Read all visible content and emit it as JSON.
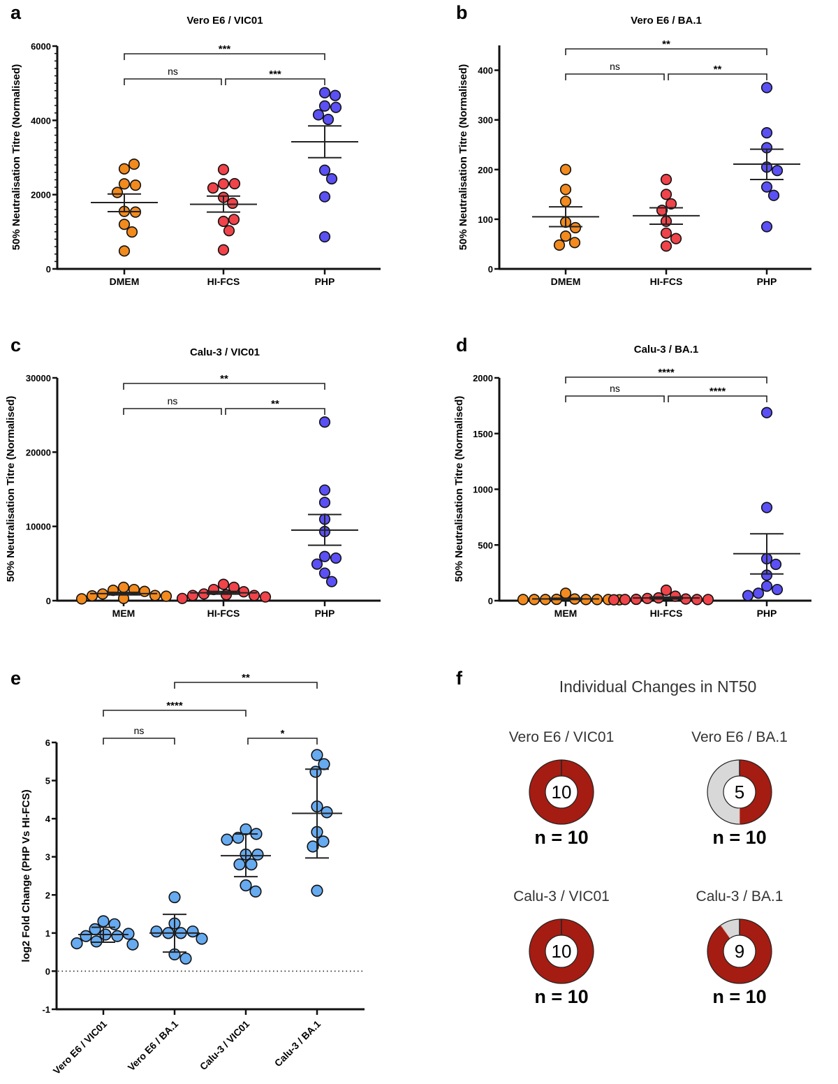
{
  "chart_data": [
    {
      "type": "scatter",
      "panel_label": "a",
      "title": "Vero E6 / VIC01",
      "ylabel": "50% Neutralisation Titre (Normalised)",
      "ylim": [
        0,
        6000
      ],
      "yticks": [
        0,
        2000,
        4000,
        6000
      ],
      "minor_ticks": 10,
      "error_bars": "SEM",
      "categories": [
        "DMEM",
        "HI-FCS",
        "PHP"
      ],
      "colors": [
        "#f28a1e",
        "#f0434a",
        "#5a50f5"
      ],
      "groups": [
        {
          "values": [
            2695,
            2820,
            2290,
            2255,
            2060,
            1550,
            1530,
            1200,
            995,
            483
          ],
          "mean": 1787,
          "err_low": 1542,
          "err_high": 2018
        },
        {
          "values": [
            2676,
            2290,
            2295,
            2180,
            1925,
            1768,
            1280,
            1330,
            1029,
            513
          ],
          "mean": 1740,
          "err_low": 1530,
          "err_high": 1960
        },
        {
          "values": [
            4745,
            4670,
            4387,
            4350,
            4150,
            4025,
            2657,
            2427,
            1943,
            865
          ],
          "mean": 3423,
          "err_low": 2996,
          "err_high": 3850
        }
      ],
      "brackets": [
        {
          "from": 0,
          "to": 1,
          "label": "ns"
        },
        {
          "from": 1,
          "to": 2,
          "label": "***"
        },
        {
          "from": 0,
          "to": 2,
          "label": "***"
        }
      ]
    },
    {
      "type": "scatter",
      "panel_label": "b",
      "title": "Vero E6 / BA.1",
      "ylabel": "50% Neutralisation Titre (Normalised)",
      "ylim": [
        0,
        450
      ],
      "yticks": [
        0,
        100,
        200,
        300,
        400
      ],
      "error_bars": "SEM",
      "categories": [
        "DMEM",
        "HI-FCS",
        "PHP"
      ],
      "colors": [
        "#f28a1e",
        "#f0434a",
        "#5a50f5"
      ],
      "groups": [
        {
          "values": [
            200,
            160,
            136,
            94,
            83,
            66,
            53,
            48
          ],
          "mean": 105,
          "err_low": 85,
          "err_high": 125
        },
        {
          "values": [
            180,
            150,
            131,
            118,
            96,
            72,
            61,
            46
          ],
          "mean": 107,
          "err_low": 90,
          "err_high": 123
        },
        {
          "values": [
            365,
            274,
            244,
            205,
            198,
            165,
            148,
            85
          ],
          "mean": 211,
          "err_low": 180,
          "err_high": 241
        }
      ],
      "brackets": [
        {
          "from": 0,
          "to": 1,
          "label": "ns"
        },
        {
          "from": 1,
          "to": 2,
          "label": "**"
        },
        {
          "from": 0,
          "to": 2,
          "label": "**"
        }
      ]
    },
    {
      "type": "scatter",
      "panel_label": "c",
      "title": "Calu-3 / VIC01",
      "ylabel": "50% Neutralisation Titre (Normalised)",
      "ylim": [
        0,
        30000
      ],
      "yticks": [
        0,
        10000,
        20000,
        30000
      ],
      "error_bars": "SEM",
      "categories": [
        "MEM",
        "HI-FCS",
        "PHP"
      ],
      "colors": [
        "#f28a1e",
        "#f0434a",
        "#5a50f5"
      ],
      "groups": [
        {
          "values": [
            1800,
            1500,
            1400,
            1250,
            900,
            700,
            650,
            600,
            300,
            250
          ],
          "mean": 950,
          "err_low": 780,
          "err_high": 1120
        },
        {
          "values": [
            2200,
            1800,
            1500,
            1200,
            900,
            800,
            700,
            700,
            500,
            300
          ],
          "mean": 1060,
          "err_low": 880,
          "err_high": 1250
        },
        {
          "values": [
            24050,
            14890,
            13230,
            10970,
            9310,
            5950,
            5730,
            4920,
            3700,
            2570
          ],
          "mean": 9500,
          "err_low": 7460,
          "err_high": 11600
        }
      ],
      "brackets": [
        {
          "from": 0,
          "to": 1,
          "label": "ns"
        },
        {
          "from": 1,
          "to": 2,
          "label": "**"
        },
        {
          "from": 0,
          "to": 2,
          "label": "**"
        }
      ]
    },
    {
      "type": "scatter",
      "panel_label": "d",
      "title": "Calu-3 / BA.1",
      "ylabel": "50% Neutralisation Titre (Normalised)",
      "ylim": [
        0,
        2000
      ],
      "yticks": [
        0,
        500,
        1000,
        1500,
        2000
      ],
      "error_bars": "SEM",
      "categories": [
        "MEM",
        "HI-FCS",
        "PHP"
      ],
      "colors": [
        "#f28a1e",
        "#f0434a",
        "#5a50f5"
      ],
      "groups": [
        {
          "values": [
            67,
            15,
            12,
            10,
            10,
            10,
            10,
            10,
            10,
            8
          ],
          "mean": 16,
          "err_low": 10,
          "err_high": 22
        },
        {
          "values": [
            94,
            40,
            25,
            20,
            15,
            12,
            10,
            10,
            10,
            8
          ],
          "mean": 24,
          "err_low": 16,
          "err_high": 33
        },
        {
          "values": [
            1688,
            836,
            376,
            326,
            229,
            130,
            100,
            67,
            46
          ],
          "mean": 422,
          "err_low": 240,
          "err_high": 600
        }
      ],
      "brackets": [
        {
          "from": 0,
          "to": 1,
          "label": "ns"
        },
        {
          "from": 1,
          "to": 2,
          "label": "****"
        },
        {
          "from": 0,
          "to": 2,
          "label": "****"
        }
      ]
    },
    {
      "type": "scatter",
      "panel_label": "e",
      "title": "",
      "ylabel": "log2 Fold Change (PHP Vs HI-FCS)",
      "ylim": [
        -1,
        6
      ],
      "yticks": [
        -1,
        0,
        1,
        2,
        3,
        4,
        5,
        6
      ],
      "reference_line": 0,
      "error_bars": "SD",
      "categories": [
        "Vero E6 / VIC01",
        "Vero E6 / BA.1",
        "Calu-3 / VIC01",
        "Calu-3 / BA.1"
      ],
      "colors": [
        "#66aaf0",
        "#66aaf0",
        "#66aaf0",
        "#66aaf0"
      ],
      "groups": [
        {
          "values": [
            1.31,
            1.23,
            1.1,
            0.96,
            0.92,
            0.92,
            0.98,
            0.78,
            0.73,
            0.7
          ],
          "mean": 0.96,
          "err_low": 0.76,
          "err_high": 1.15
        },
        {
          "values": [
            1.94,
            1.25,
            1.0,
            1.0,
            1.04,
            1.04,
            0.85,
            0.44,
            0.33
          ],
          "mean": 1.0,
          "err_low": 0.5,
          "err_high": 1.49
        },
        {
          "values": [
            3.72,
            3.6,
            3.5,
            3.45,
            3.06,
            3.06,
            2.8,
            2.8,
            2.25,
            2.09
          ],
          "mean": 3.03,
          "err_low": 2.48,
          "err_high": 3.6
        },
        {
          "values": [
            5.67,
            5.43,
            5.23,
            4.32,
            4.17,
            3.65,
            3.4,
            3.27,
            2.11
          ],
          "mean": 4.14,
          "err_low": 2.97,
          "err_high": 5.3
        }
      ],
      "brackets": [
        {
          "from": 0,
          "to": 1,
          "label": "ns"
        },
        {
          "from": 2,
          "to": 3,
          "label": "*"
        },
        {
          "from": 0,
          "to": 2,
          "label": "****"
        },
        {
          "from": 1,
          "to": 3,
          "label": "**"
        }
      ]
    },
    {
      "type": "pie",
      "panel_label": "f",
      "title": "Individual Changes in NT50",
      "colors": {
        "increase": "#a51c12",
        "other": "#d8d8d8"
      },
      "donuts": [
        {
          "label": "Vero E6 / VIC01",
          "count": 10,
          "total": 10,
          "n_label": "n = 10"
        },
        {
          "label": "Vero E6 / BA.1",
          "count": 5,
          "total": 10,
          "n_label": "n = 10"
        },
        {
          "label": "Calu-3 / VIC01",
          "count": 10,
          "total": 10,
          "n_label": "n = 10"
        },
        {
          "label": "Calu-3 / BA.1",
          "count": 9,
          "total": 10,
          "n_label": "n = 10"
        }
      ]
    }
  ]
}
